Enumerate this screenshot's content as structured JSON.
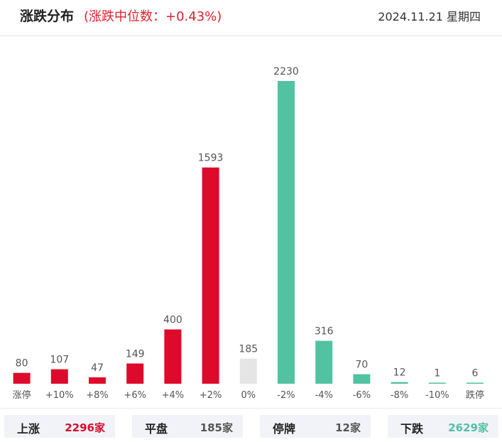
{
  "header": {
    "title": "涨跌分布",
    "subtitle": "(涨跌中位数：+0.43%)",
    "date": "2024.11.21 星期四"
  },
  "colors": {
    "up": "#de0a2b",
    "flat": "#e5e5e5",
    "down": "#52c2a1",
    "label": "#555555"
  },
  "chart_data": {
    "type": "bar",
    "categories": [
      "涨停",
      "+10%",
      "+8%",
      "+6%",
      "+4%",
      "+2%",
      "0%",
      "-2%",
      "-4%",
      "-6%",
      "-8%",
      "-10%",
      "跌停"
    ],
    "values": [
      80,
      107,
      47,
      149,
      400,
      1593,
      185,
      2230,
      316,
      70,
      12,
      1,
      6
    ],
    "groups": [
      "up",
      "up",
      "up",
      "up",
      "up",
      "up",
      "flat",
      "down",
      "down",
      "down",
      "down",
      "down",
      "down"
    ],
    "ylim": [
      0,
      2230
    ]
  },
  "summary": [
    {
      "label": "上涨",
      "value": "2296家",
      "color": "#de0a2b"
    },
    {
      "label": "平盘",
      "value": "185家",
      "color": "#555555"
    },
    {
      "label": "停牌",
      "value": "12家",
      "color": "#555555"
    },
    {
      "label": "下跌",
      "value": "2629家",
      "color": "#52c2a1"
    }
  ]
}
